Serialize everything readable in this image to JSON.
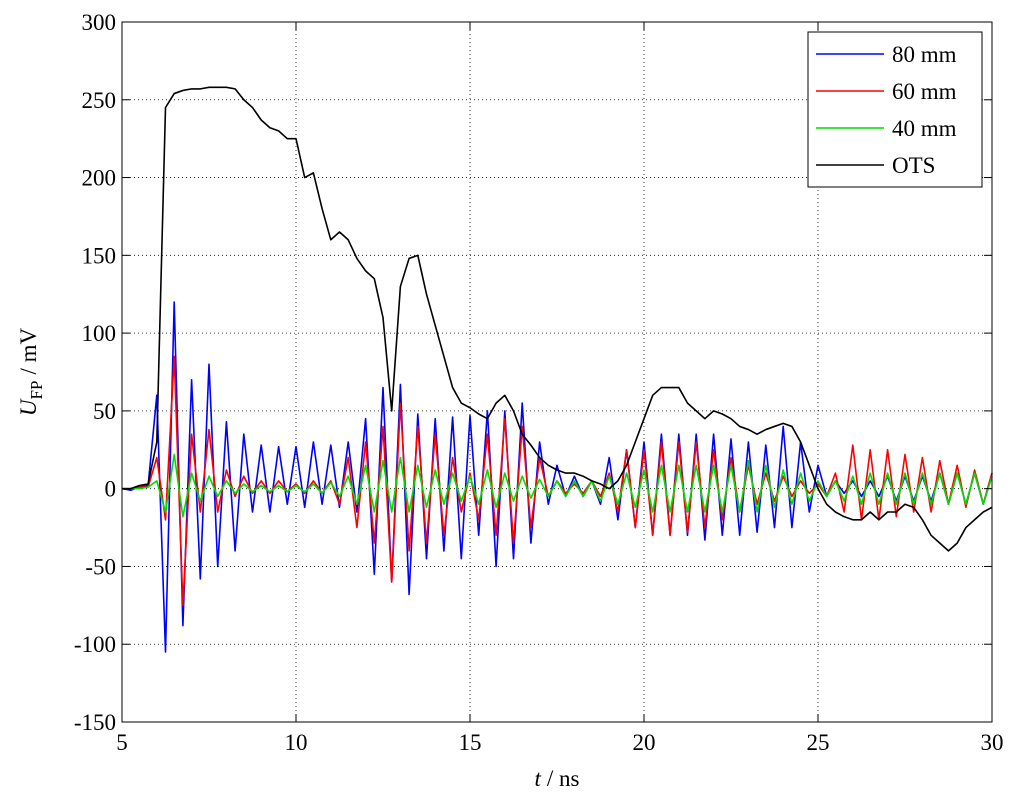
{
  "chart_data": {
    "type": "line",
    "x_label": {
      "symbol": "t",
      "unit": "/ ns"
    },
    "y_label": {
      "symbol": "U",
      "subscript": "FP",
      "unit": "/ mV"
    },
    "xlim": [
      5,
      30
    ],
    "xticks": [
      5,
      10,
      15,
      20,
      25,
      30
    ],
    "ylim": [
      -150,
      300
    ],
    "yticks": [
      -150,
      -100,
      -50,
      0,
      50,
      100,
      150,
      200,
      250,
      300
    ],
    "grid": true,
    "legend": "upper right",
    "x": [
      5,
      5.25,
      5.5,
      5.75,
      6,
      6.25,
      6.5,
      6.75,
      7,
      7.25,
      7.5,
      7.75,
      8,
      8.25,
      8.5,
      8.75,
      9,
      9.25,
      9.5,
      9.75,
      10,
      10.25,
      10.5,
      10.75,
      11,
      11.25,
      11.5,
      11.75,
      12,
      12.25,
      12.5,
      12.75,
      13,
      13.25,
      13.5,
      13.75,
      14,
      14.25,
      14.5,
      14.75,
      15,
      15.25,
      15.5,
      15.75,
      16,
      16.25,
      16.5,
      16.75,
      17,
      17.25,
      17.5,
      17.75,
      18,
      18.25,
      18.5,
      18.75,
      19,
      19.25,
      19.5,
      19.75,
      20,
      20.25,
      20.5,
      20.75,
      21,
      21.25,
      21.5,
      21.75,
      22,
      22.25,
      22.5,
      22.75,
      23,
      23.25,
      23.5,
      23.75,
      24,
      24.25,
      24.5,
      24.75,
      25,
      25.25,
      25.5,
      25.75,
      26,
      26.25,
      26.5,
      26.75,
      27,
      27.25,
      27.5,
      27.75,
      28,
      28.25,
      28.5,
      28.75,
      29,
      29.25,
      29.5,
      29.75,
      30
    ],
    "series": [
      {
        "name": "80 mm",
        "color": "#0000ff",
        "values": [
          0,
          -1,
          1,
          2,
          60,
          -105,
          120,
          -88,
          70,
          -58,
          80,
          -50,
          43,
          -40,
          35,
          -15,
          28,
          -15,
          27,
          -10,
          27,
          -12,
          30,
          -10,
          28,
          -12,
          30,
          -15,
          45,
          -55,
          65,
          -60,
          67,
          -68,
          48,
          -45,
          45,
          -40,
          46,
          -45,
          47,
          -30,
          50,
          -50,
          50,
          -45,
          55,
          -35,
          30,
          -10,
          15,
          -5,
          8,
          -5,
          5,
          -10,
          20,
          -20,
          25,
          -25,
          30,
          -30,
          35,
          -30,
          35,
          -30,
          35,
          -33,
          35,
          -30,
          32,
          -30,
          30,
          -28,
          28,
          -25,
          40,
          -25,
          30,
          -15,
          15,
          -5,
          5,
          -3,
          5,
          -5,
          5,
          -5,
          8,
          -8,
          8,
          -8,
          8,
          -8,
          10,
          -10,
          10,
          -10,
          10,
          -10,
          10
        ]
      },
      {
        "name": "60 mm",
        "color": "#ff0000",
        "values": [
          0,
          0,
          1,
          1,
          20,
          -20,
          85,
          -75,
          35,
          -15,
          38,
          -15,
          12,
          -5,
          8,
          -3,
          5,
          -3,
          5,
          -2,
          3,
          -3,
          5,
          -3,
          5,
          -10,
          20,
          -25,
          30,
          -35,
          40,
          -60,
          55,
          -40,
          40,
          -35,
          35,
          -30,
          20,
          -15,
          10,
          -20,
          35,
          -30,
          45,
          -35,
          40,
          -25,
          20,
          -5,
          5,
          -3,
          3,
          -3,
          5,
          -5,
          10,
          -15,
          25,
          -25,
          25,
          -30,
          30,
          -30,
          30,
          -28,
          30,
          -25,
          25,
          -20,
          20,
          -15,
          15,
          -10,
          10,
          -8,
          8,
          -5,
          5,
          -3,
          3,
          -5,
          10,
          -15,
          28,
          -20,
          25,
          -20,
          25,
          -18,
          22,
          -15,
          20,
          -15,
          18,
          -10,
          15,
          -12,
          12,
          -10,
          10
        ]
      },
      {
        "name": "40 mm",
        "color": "#00dd00",
        "values": [
          0,
          0,
          0,
          1,
          5,
          -15,
          22,
          -18,
          10,
          -8,
          8,
          -5,
          5,
          -3,
          3,
          -2,
          2,
          -2,
          2,
          -2,
          2,
          -2,
          3,
          -3,
          4,
          -5,
          8,
          -10,
          15,
          -15,
          18,
          -15,
          20,
          -15,
          15,
          -12,
          12,
          -10,
          10,
          -8,
          8,
          -10,
          12,
          -12,
          10,
          -8,
          8,
          -6,
          6,
          -5,
          5,
          -5,
          5,
          -5,
          5,
          -8,
          8,
          -10,
          10,
          -12,
          12,
          -15,
          15,
          -15,
          15,
          -15,
          15,
          -15,
          15,
          -15,
          15,
          -15,
          18,
          -15,
          15,
          -12,
          12,
          -10,
          10,
          -8,
          5,
          -5,
          5,
          -8,
          8,
          -10,
          10,
          -10,
          10,
          -10,
          10,
          -10,
          10,
          -10,
          10,
          -10,
          10,
          -10,
          10,
          -10,
          8
        ]
      },
      {
        "name": "OTS",
        "color": "#000000",
        "values": [
          0,
          0,
          2,
          3,
          30,
          245,
          254,
          256,
          257,
          257,
          258,
          258,
          258,
          257,
          250,
          245,
          237,
          232,
          230,
          225,
          225,
          200,
          203,
          180,
          160,
          165,
          160,
          148,
          140,
          135,
          110,
          50,
          130,
          148,
          150,
          125,
          105,
          85,
          65,
          55,
          52,
          48,
          45,
          55,
          60,
          50,
          35,
          28,
          20,
          15,
          12,
          10,
          10,
          8,
          5,
          3,
          0,
          5,
          15,
          30,
          45,
          60,
          65,
          65,
          65,
          55,
          50,
          45,
          50,
          48,
          45,
          40,
          38,
          35,
          38,
          40,
          42,
          40,
          30,
          15,
          0,
          -10,
          -15,
          -18,
          -20,
          -20,
          -15,
          -20,
          -15,
          -15,
          -10,
          -12,
          -20,
          -30,
          -35,
          -40,
          -35,
          -25,
          -20,
          -15,
          -12
        ]
      }
    ]
  }
}
